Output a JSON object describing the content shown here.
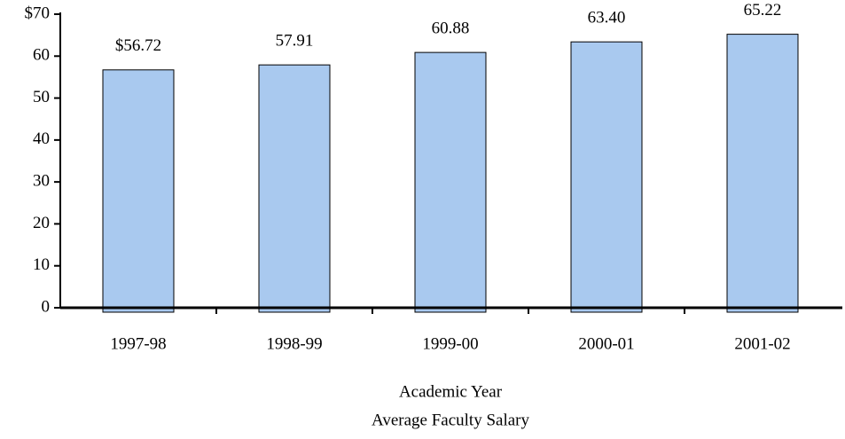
{
  "chart_data": {
    "type": "bar",
    "title": "Average Faculty Salary",
    "xlabel": "Academic Year",
    "categories": [
      "1997-98",
      "1998-99",
      "1999-00",
      "2000-01",
      "2001-02"
    ],
    "values": [
      56.72,
      57.91,
      60.88,
      63.4,
      65.22
    ],
    "value_labels": [
      "$56.72",
      "57.91",
      "60.88",
      "63.40",
      "65.22"
    ],
    "color": "#a9c9ef",
    "ylim": [
      0,
      70
    ],
    "yticks": [
      0,
      10,
      20,
      30,
      40,
      50,
      60,
      {
        "value": 70,
        "label": "$70"
      }
    ]
  }
}
